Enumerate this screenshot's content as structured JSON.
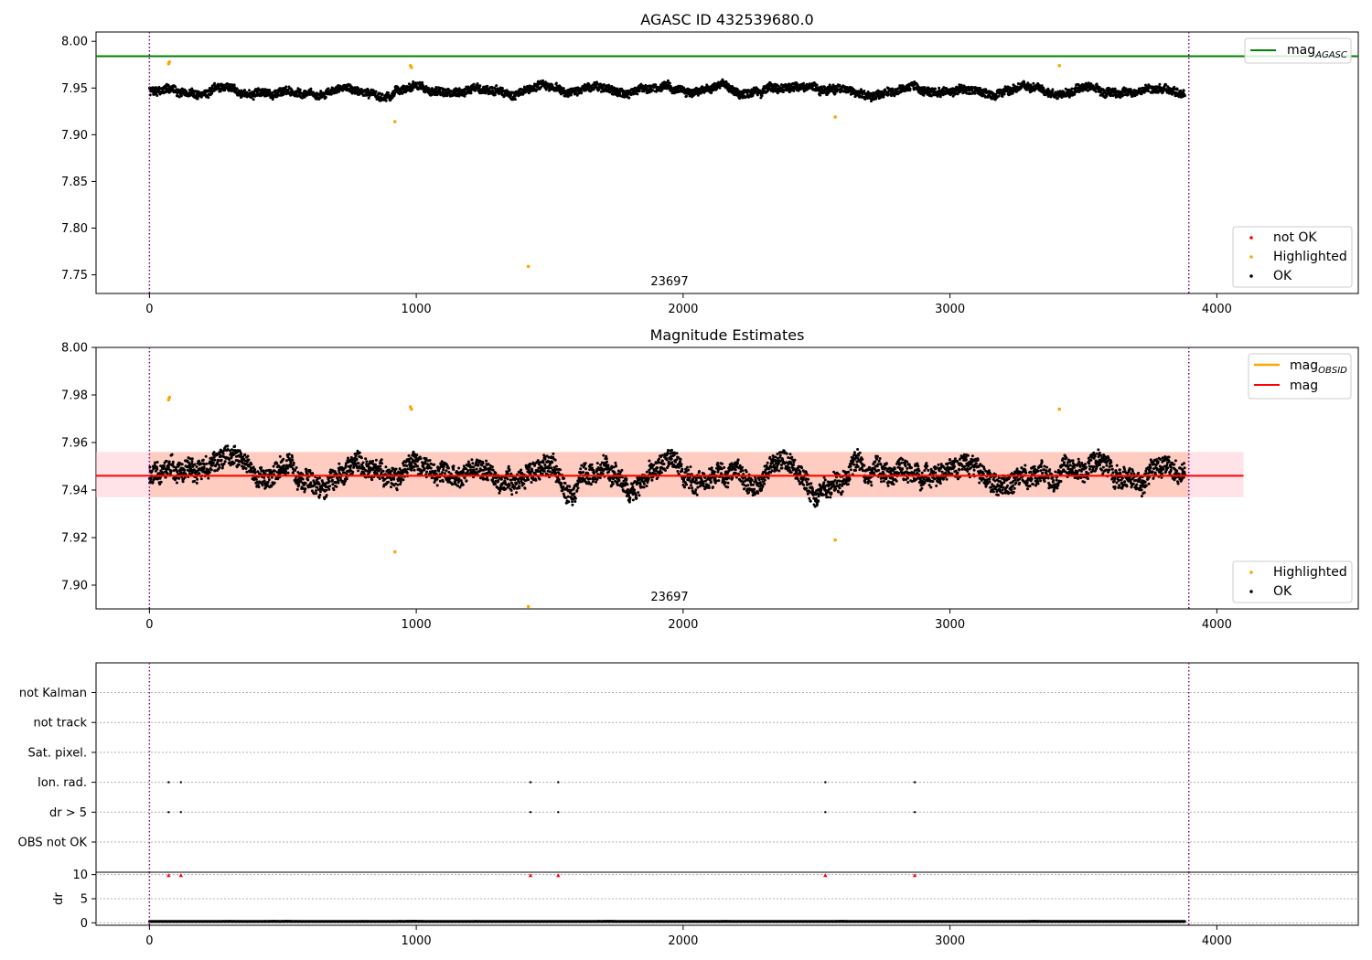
{
  "chart_data": [
    {
      "type": "scatter",
      "title": "AGASC ID 432539680.0",
      "xlim": [
        -200,
        4530
      ],
      "ylim": [
        7.73,
        8.01
      ],
      "xticks": [
        0,
        1000,
        2000,
        3000,
        4000
      ],
      "yticks": [
        7.75,
        7.8,
        7.85,
        7.9,
        7.95,
        8.0
      ],
      "ytick_labels": [
        "7.75",
        "7.80",
        "7.85",
        "7.90",
        "7.95",
        "8.00"
      ],
      "vlines": [
        0,
        3895
      ],
      "obsid_label": {
        "text": "23697",
        "x": 1950
      },
      "hlines": [
        {
          "name": "mag_AGASC",
          "value": 7.984,
          "color": "#008000"
        }
      ],
      "series": [
        {
          "name": "not OK",
          "color": "#ff0000",
          "points": []
        },
        {
          "name": "Highlighted",
          "color": "#ffa500",
          "points": [
            [
              72,
              7.976
            ],
            [
              75,
              7.978
            ],
            [
              920,
              7.914
            ],
            [
              978,
              7.974
            ],
            [
              982,
              7.972
            ],
            [
              1420,
              7.759
            ],
            [
              2570,
              7.919
            ],
            [
              3410,
              7.974
            ]
          ]
        },
        {
          "name": "OK",
          "color": "#000000",
          "n_points": 3880,
          "x_range": [
            0,
            3880
          ],
          "y_median": 7.947,
          "y_spread": [
            7.92,
            7.972
          ]
        }
      ],
      "legend": {
        "location": "upper right",
        "entries": [
          "mag_AGASC"
        ]
      },
      "legend2": {
        "location": "lower right",
        "entries": [
          "not OK",
          "Highlighted",
          "OK"
        ]
      }
    },
    {
      "type": "scatter",
      "title": "Magnitude Estimates",
      "xlim": [
        -200,
        4530
      ],
      "ylim": [
        7.89,
        8.0
      ],
      "xticks": [
        0,
        1000,
        2000,
        3000,
        4000
      ],
      "yticks": [
        7.9,
        7.92,
        7.94,
        7.96,
        7.98,
        8.0
      ],
      "ytick_labels": [
        "7.90",
        "7.92",
        "7.94",
        "7.96",
        "7.98",
        "8.00"
      ],
      "vlines": [
        0,
        3895
      ],
      "obsid_label": {
        "text": "23697",
        "x": 1950
      },
      "bands": [
        {
          "name": "mag band",
          "range": [
            -200,
            4100
          ],
          "y": [
            7.937,
            7.956
          ],
          "color": "#ffc0cb"
        },
        {
          "name": "mag_OBSID band",
          "range": [
            0,
            3895
          ],
          "y": [
            7.937,
            7.956
          ],
          "color": "#ffa07a"
        }
      ],
      "hlines": [
        {
          "name": "mag_OBSID",
          "value": 7.946,
          "color": "#ffa500",
          "range": [
            0,
            3895
          ]
        },
        {
          "name": "mag",
          "value": 7.946,
          "color": "#ff0000",
          "range": [
            -200,
            4100
          ]
        }
      ],
      "series": [
        {
          "name": "Highlighted",
          "color": "#ffa500",
          "points": [
            [
              72,
              7.978
            ],
            [
              75,
              7.979
            ],
            [
              920,
              7.914
            ],
            [
              978,
              7.975
            ],
            [
              982,
              7.974
            ],
            [
              1420,
              7.891
            ],
            [
              2570,
              7.919
            ],
            [
              3410,
              7.974
            ]
          ]
        },
        {
          "name": "OK",
          "color": "#000000",
          "n_points": 3880,
          "x_range": [
            0,
            3880
          ],
          "y_median": 7.947,
          "y_spread": [
            7.92,
            7.972
          ]
        }
      ],
      "legend": {
        "location": "upper right",
        "entries": [
          "mag_OBSID",
          "mag"
        ]
      },
      "legend2": {
        "location": "lower right",
        "entries": [
          "Highlighted",
          "OK"
        ]
      }
    },
    {
      "type": "scatter",
      "title": "",
      "xlim": [
        -200,
        4530
      ],
      "categories": [
        "OBS not OK",
        "dr > 5",
        "Ion. rad.",
        "Sat. pixel.",
        "not track",
        "not Kalman"
      ],
      "vlines": [
        0,
        3895
      ],
      "flags": [
        {
          "category": "Ion. rad.",
          "x": [
            72,
            118,
            1428,
            1532,
            2533,
            2868
          ]
        },
        {
          "category": "dr > 5",
          "x": [
            72,
            118,
            1428,
            1532,
            2533,
            2868
          ]
        }
      ]
    },
    {
      "type": "scatter",
      "title": "",
      "xlim": [
        -200,
        4530
      ],
      "ylim": [
        -0.5,
        10.5
      ],
      "ylabel": "dr",
      "xticks": [
        0,
        1000,
        2000,
        3000,
        4000
      ],
      "yticks": [
        0,
        5,
        10
      ],
      "ytick_labels": [
        "0",
        "5",
        "10"
      ],
      "vlines": [
        0,
        3895
      ],
      "series": [
        {
          "name": "dr",
          "color": "#000000",
          "n_points": 3880,
          "x_range": [
            0,
            3880
          ],
          "y_median": 0.3,
          "y_spread": [
            0.0,
            0.8
          ]
        },
        {
          "name": "dr > 10",
          "color": "#ff0000",
          "marker": "triangle-up",
          "points": [
            [
              72,
              9.8
            ],
            [
              118,
              9.8
            ],
            [
              1428,
              9.8
            ],
            [
              1532,
              9.8
            ],
            [
              2533,
              9.8
            ],
            [
              2868,
              9.8
            ]
          ]
        }
      ]
    }
  ],
  "panels": {
    "agasc": {
      "title": "AGASC ID 432539680.0",
      "obsid_label": "23697",
      "legend_mag": "mag",
      "legend_mag_sub": "AGASC",
      "legend_not_ok": "not OK",
      "legend_highlighted": "Highlighted",
      "legend_ok": "OK"
    },
    "estimates": {
      "title": "Magnitude Estimates",
      "obsid_label": "23697",
      "legend_mag_obsid": "mag",
      "legend_mag_obsid_sub": "OBSID",
      "legend_mag": "mag",
      "legend_highlighted": "Highlighted",
      "legend_ok": "OK"
    },
    "flags": {
      "labels": [
        "not Kalman",
        "not track",
        "Sat. pixel.",
        "Ion. rad.",
        "dr > 5",
        "OBS not OK"
      ]
    },
    "dr": {
      "ylabel": "dr"
    }
  }
}
